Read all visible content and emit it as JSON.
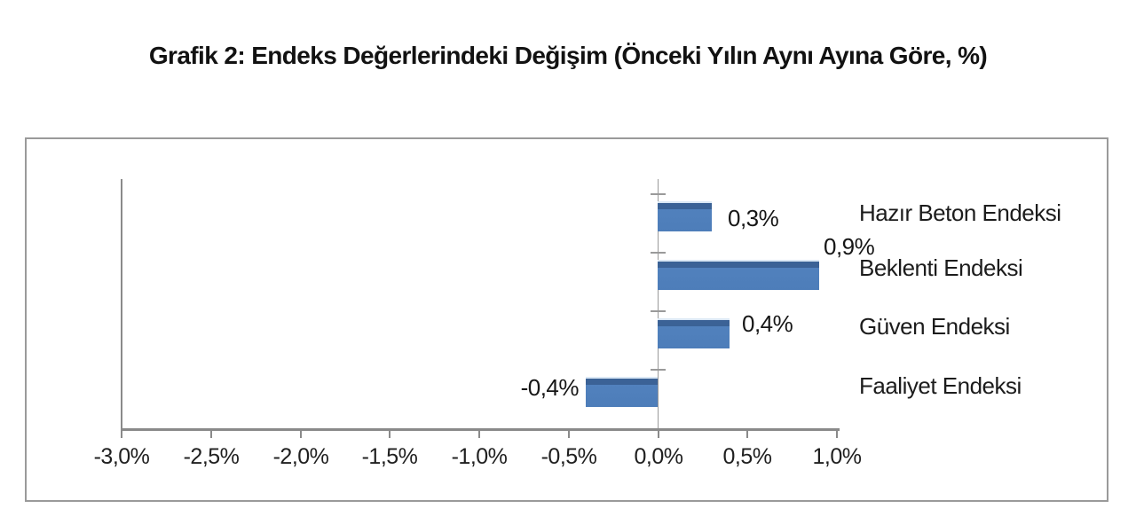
{
  "chart_data": {
    "type": "bar",
    "orientation": "horizontal",
    "title": "Grafik 2: Endeks Değerlerindeki Değişim (Önceki Yılın Aynı Ayına Göre, %)",
    "categories": [
      "Hazır Beton Endeksi",
      "Beklenti Endeksi",
      "Güven Endeksi",
      "Faaliyet Endeksi"
    ],
    "values": [
      0.3,
      0.9,
      0.4,
      -0.4
    ],
    "value_labels": [
      "0,3%",
      "0,9%",
      "0,4%",
      "-0,4%"
    ],
    "xlabel": "",
    "ylabel": "",
    "xlim": [
      -3.0,
      1.0
    ],
    "xtick_step": 0.5,
    "xtick_labels": [
      "-3,0%",
      "-2,5%",
      "-2,0%",
      "-1,5%",
      "-1,0%",
      "-0,5%",
      "0,0%",
      "0,5%",
      "1,0%"
    ],
    "grid": "off",
    "legend": "none",
    "colors": {
      "bar_body": "#4f81bd",
      "bar_top_band": "#3b6296",
      "bar_top_highlight": "#dbe8f5",
      "axis": "#8a8a8a",
      "panel_border": "#9a9a9a",
      "text": "#1c1c1c",
      "background": "#ffffff"
    }
  }
}
